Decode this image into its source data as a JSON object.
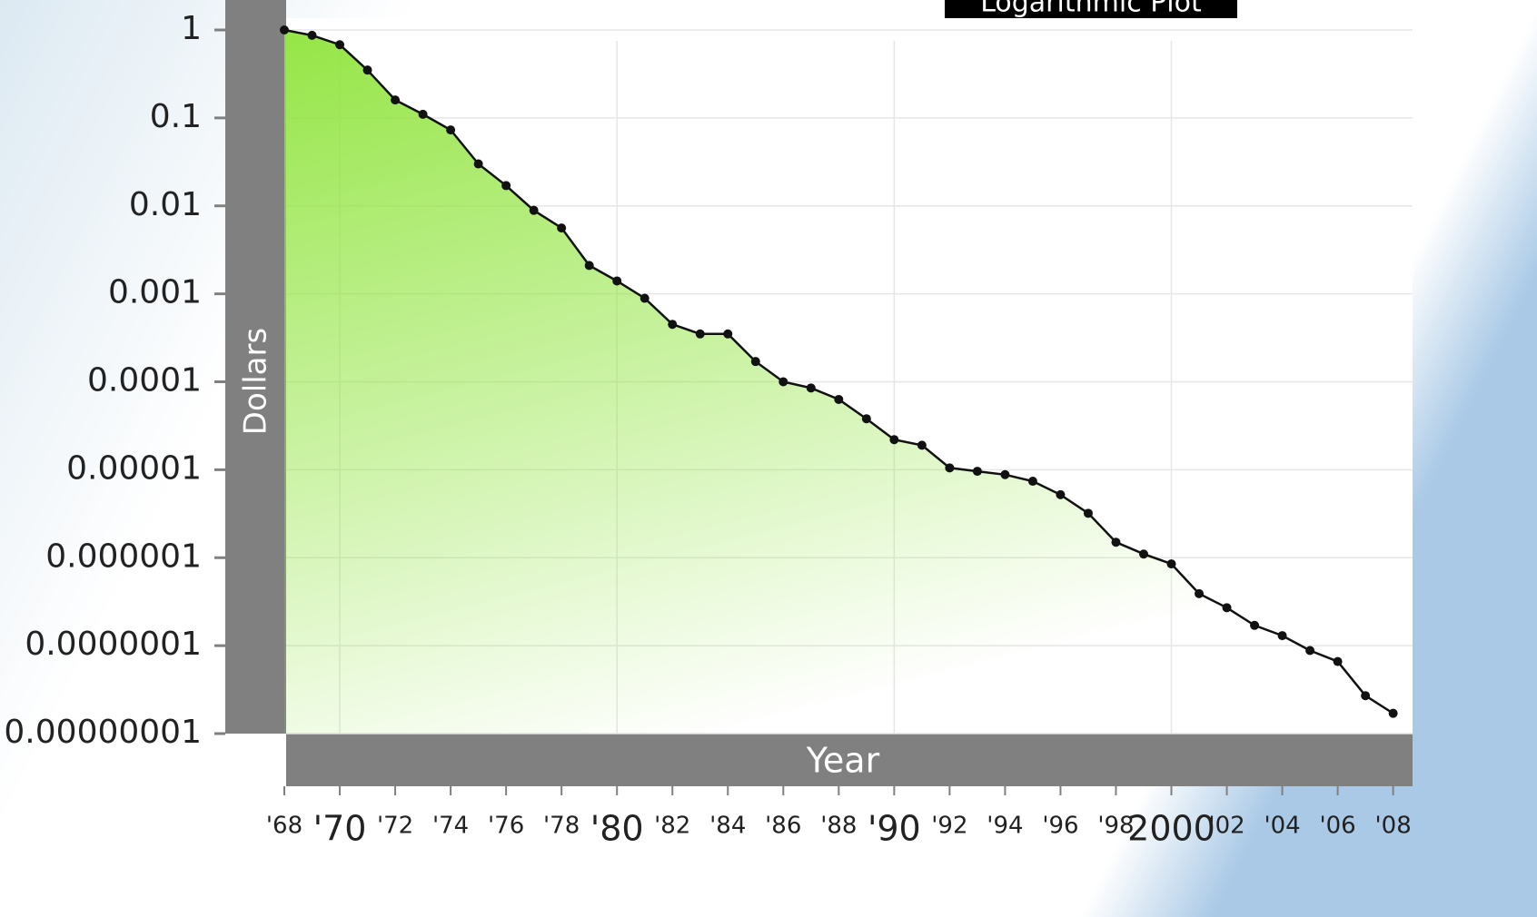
{
  "chart_data": {
    "type": "line",
    "title": "Logarithmic Plot",
    "x_label": "Year",
    "y_label": "Dollars",
    "x": [
      1968,
      1969,
      1970,
      1971,
      1972,
      1973,
      1974,
      1975,
      1976,
      1977,
      1978,
      1979,
      1980,
      1981,
      1982,
      1983,
      1984,
      1985,
      1986,
      1987,
      1988,
      1989,
      1990,
      1991,
      1992,
      1993,
      1994,
      1995,
      1996,
      1997,
      1998,
      1999,
      2000,
      2001,
      2002,
      2003,
      2004,
      2005,
      2006,
      2007,
      2008
    ],
    "values": [
      1,
      0.87,
      0.68,
      0.35,
      0.16,
      0.11,
      0.073,
      0.03,
      0.017,
      0.0089,
      0.0056,
      0.0021,
      0.0014,
      0.00089,
      0.00045,
      0.00035,
      0.00035,
      0.00017,
      0.0001,
      8.5e-05,
      6.3e-05,
      3.8e-05,
      2.2e-05,
      1.9e-05,
      1.05e-05,
      9.6e-06,
      8.8e-06,
      7.4e-06,
      5.2e-06,
      3.2e-06,
      1.5e-06,
      1.1e-06,
      8.5e-07,
      3.9e-07,
      2.7e-07,
      1.7e-07,
      1.3e-07,
      8.8e-08,
      6.6e-08,
      2.7e-08,
      1.7e-08
    ],
    "color": "#111111",
    "area_color": "#8fe43c",
    "xlim": [
      1968,
      2008.7
    ],
    "xticks": [
      {
        "value": 1968,
        "label": "'68"
      },
      {
        "value": 1970,
        "label": "'70"
      },
      {
        "value": 1972,
        "label": "'72"
      },
      {
        "value": 1974,
        "label": "'74"
      },
      {
        "value": 1976,
        "label": "'76"
      },
      {
        "value": 1978,
        "label": "'78"
      },
      {
        "value": 1980,
        "label": "'80"
      },
      {
        "value": 1982,
        "label": "'82"
      },
      {
        "value": 1984,
        "label": "'84"
      },
      {
        "value": 1986,
        "label": "'86"
      },
      {
        "value": 1988,
        "label": "'88"
      },
      {
        "value": 1990,
        "label": "'90"
      },
      {
        "value": 1992,
        "label": "'92"
      },
      {
        "value": 1994,
        "label": "'94"
      },
      {
        "value": 1996,
        "label": "'96"
      },
      {
        "value": 1998,
        "label": "'98"
      },
      2000,
      {
        "value": 2002,
        "label": "'02"
      },
      {
        "value": 2004,
        "label": "'04"
      },
      {
        "value": 2006,
        "label": "'06"
      },
      {
        "value": 2008,
        "label": "'08"
      }
    ],
    "ylim": [
      1e-08,
      1
    ],
    "y_scale": "log",
    "yticks": [
      1,
      0.1,
      0.01,
      0.001,
      0.0001,
      1e-05,
      1e-06,
      {
        "value": 1e-07,
        "label": "0.0000001"
      },
      {
        "value": 1e-08,
        "label": "0.00000001"
      }
    ],
    "grid": true
  }
}
